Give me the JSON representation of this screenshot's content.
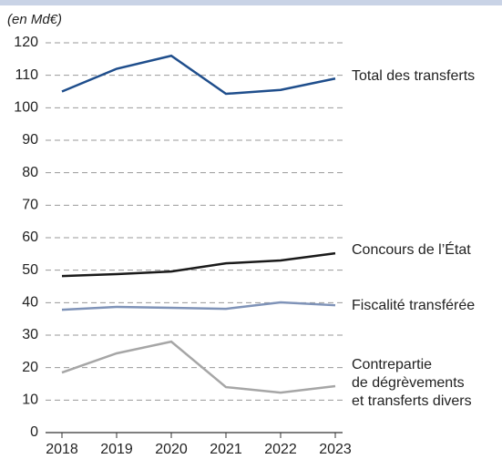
{
  "chart_data": {
    "type": "line",
    "unit_label": "(en Md€)",
    "x": [
      2018,
      2019,
      2020,
      2021,
      2022,
      2023
    ],
    "xlim": [
      2018,
      2023
    ],
    "xticks": [
      2018,
      2019,
      2020,
      2021,
      2022,
      2023
    ],
    "ylim": [
      0,
      120
    ],
    "yticks": [
      0,
      10,
      20,
      30,
      40,
      50,
      60,
      70,
      80,
      90,
      100,
      110,
      120
    ],
    "grid": true,
    "series": [
      {
        "name": "Total des transferts",
        "color": "#1f4e8c",
        "values": [
          105,
          112,
          116,
          104.3,
          105.5,
          109
        ]
      },
      {
        "name": "Concours de l’État",
        "color": "#1a1a1a",
        "values": [
          48.2,
          48.8,
          49.6,
          52.1,
          53,
          55.2
        ]
      },
      {
        "name": "Fiscalité transférée",
        "color": "#7f93b8",
        "values": [
          37.8,
          38.7,
          38.4,
          38.1,
          40.1,
          39.2
        ]
      },
      {
        "name": "Contrepartie\nde dégrèvements\net transferts divers",
        "color": "#a6a6a6",
        "values": [
          18.5,
          24.4,
          28,
          14,
          12.3,
          14.3
        ]
      }
    ]
  }
}
